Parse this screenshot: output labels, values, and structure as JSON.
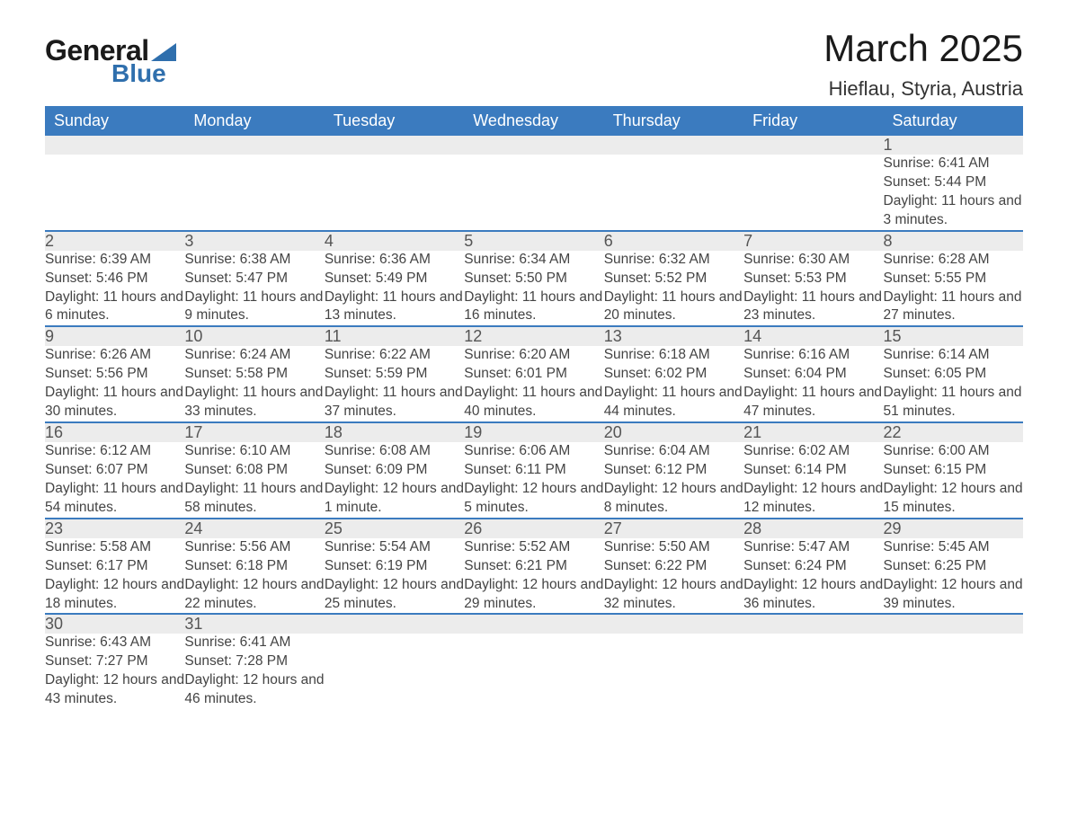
{
  "logo": {
    "word1": "General",
    "word2": "Blue",
    "triangle_color": "#2f6fad"
  },
  "title": "March 2025",
  "location": "Hieflau, Styria, Austria",
  "colors": {
    "header_bg": "#3b7bbf",
    "header_text": "#ffffff",
    "daynum_bg": "#ececec",
    "row_divider": "#3b7bbf",
    "text": "#444444",
    "background": "#ffffff"
  },
  "typography": {
    "title_fontsize": 42,
    "location_fontsize": 22,
    "dayheader_fontsize": 18,
    "daynum_fontsize": 18,
    "body_fontsize": 15.5
  },
  "day_headers": [
    "Sunday",
    "Monday",
    "Tuesday",
    "Wednesday",
    "Thursday",
    "Friday",
    "Saturday"
  ],
  "labels": {
    "sunrise": "Sunrise:",
    "sunset": "Sunset:",
    "daylight": "Daylight:"
  },
  "weeks": [
    [
      null,
      null,
      null,
      null,
      null,
      null,
      {
        "n": "1",
        "sunrise": "6:41 AM",
        "sunset": "5:44 PM",
        "daylight": "11 hours and 3 minutes."
      }
    ],
    [
      {
        "n": "2",
        "sunrise": "6:39 AM",
        "sunset": "5:46 PM",
        "daylight": "11 hours and 6 minutes."
      },
      {
        "n": "3",
        "sunrise": "6:38 AM",
        "sunset": "5:47 PM",
        "daylight": "11 hours and 9 minutes."
      },
      {
        "n": "4",
        "sunrise": "6:36 AM",
        "sunset": "5:49 PM",
        "daylight": "11 hours and 13 minutes."
      },
      {
        "n": "5",
        "sunrise": "6:34 AM",
        "sunset": "5:50 PM",
        "daylight": "11 hours and 16 minutes."
      },
      {
        "n": "6",
        "sunrise": "6:32 AM",
        "sunset": "5:52 PM",
        "daylight": "11 hours and 20 minutes."
      },
      {
        "n": "7",
        "sunrise": "6:30 AM",
        "sunset": "5:53 PM",
        "daylight": "11 hours and 23 minutes."
      },
      {
        "n": "8",
        "sunrise": "6:28 AM",
        "sunset": "5:55 PM",
        "daylight": "11 hours and 27 minutes."
      }
    ],
    [
      {
        "n": "9",
        "sunrise": "6:26 AM",
        "sunset": "5:56 PM",
        "daylight": "11 hours and 30 minutes."
      },
      {
        "n": "10",
        "sunrise": "6:24 AM",
        "sunset": "5:58 PM",
        "daylight": "11 hours and 33 minutes."
      },
      {
        "n": "11",
        "sunrise": "6:22 AM",
        "sunset": "5:59 PM",
        "daylight": "11 hours and 37 minutes."
      },
      {
        "n": "12",
        "sunrise": "6:20 AM",
        "sunset": "6:01 PM",
        "daylight": "11 hours and 40 minutes."
      },
      {
        "n": "13",
        "sunrise": "6:18 AM",
        "sunset": "6:02 PM",
        "daylight": "11 hours and 44 minutes."
      },
      {
        "n": "14",
        "sunrise": "6:16 AM",
        "sunset": "6:04 PM",
        "daylight": "11 hours and 47 minutes."
      },
      {
        "n": "15",
        "sunrise": "6:14 AM",
        "sunset": "6:05 PM",
        "daylight": "11 hours and 51 minutes."
      }
    ],
    [
      {
        "n": "16",
        "sunrise": "6:12 AM",
        "sunset": "6:07 PM",
        "daylight": "11 hours and 54 minutes."
      },
      {
        "n": "17",
        "sunrise": "6:10 AM",
        "sunset": "6:08 PM",
        "daylight": "11 hours and 58 minutes."
      },
      {
        "n": "18",
        "sunrise": "6:08 AM",
        "sunset": "6:09 PM",
        "daylight": "12 hours and 1 minute."
      },
      {
        "n": "19",
        "sunrise": "6:06 AM",
        "sunset": "6:11 PM",
        "daylight": "12 hours and 5 minutes."
      },
      {
        "n": "20",
        "sunrise": "6:04 AM",
        "sunset": "6:12 PM",
        "daylight": "12 hours and 8 minutes."
      },
      {
        "n": "21",
        "sunrise": "6:02 AM",
        "sunset": "6:14 PM",
        "daylight": "12 hours and 12 minutes."
      },
      {
        "n": "22",
        "sunrise": "6:00 AM",
        "sunset": "6:15 PM",
        "daylight": "12 hours and 15 minutes."
      }
    ],
    [
      {
        "n": "23",
        "sunrise": "5:58 AM",
        "sunset": "6:17 PM",
        "daylight": "12 hours and 18 minutes."
      },
      {
        "n": "24",
        "sunrise": "5:56 AM",
        "sunset": "6:18 PM",
        "daylight": "12 hours and 22 minutes."
      },
      {
        "n": "25",
        "sunrise": "5:54 AM",
        "sunset": "6:19 PM",
        "daylight": "12 hours and 25 minutes."
      },
      {
        "n": "26",
        "sunrise": "5:52 AM",
        "sunset": "6:21 PM",
        "daylight": "12 hours and 29 minutes."
      },
      {
        "n": "27",
        "sunrise": "5:50 AM",
        "sunset": "6:22 PM",
        "daylight": "12 hours and 32 minutes."
      },
      {
        "n": "28",
        "sunrise": "5:47 AM",
        "sunset": "6:24 PM",
        "daylight": "12 hours and 36 minutes."
      },
      {
        "n": "29",
        "sunrise": "5:45 AM",
        "sunset": "6:25 PM",
        "daylight": "12 hours and 39 minutes."
      }
    ],
    [
      {
        "n": "30",
        "sunrise": "6:43 AM",
        "sunset": "7:27 PM",
        "daylight": "12 hours and 43 minutes."
      },
      {
        "n": "31",
        "sunrise": "6:41 AM",
        "sunset": "7:28 PM",
        "daylight": "12 hours and 46 minutes."
      },
      null,
      null,
      null,
      null,
      null
    ]
  ]
}
